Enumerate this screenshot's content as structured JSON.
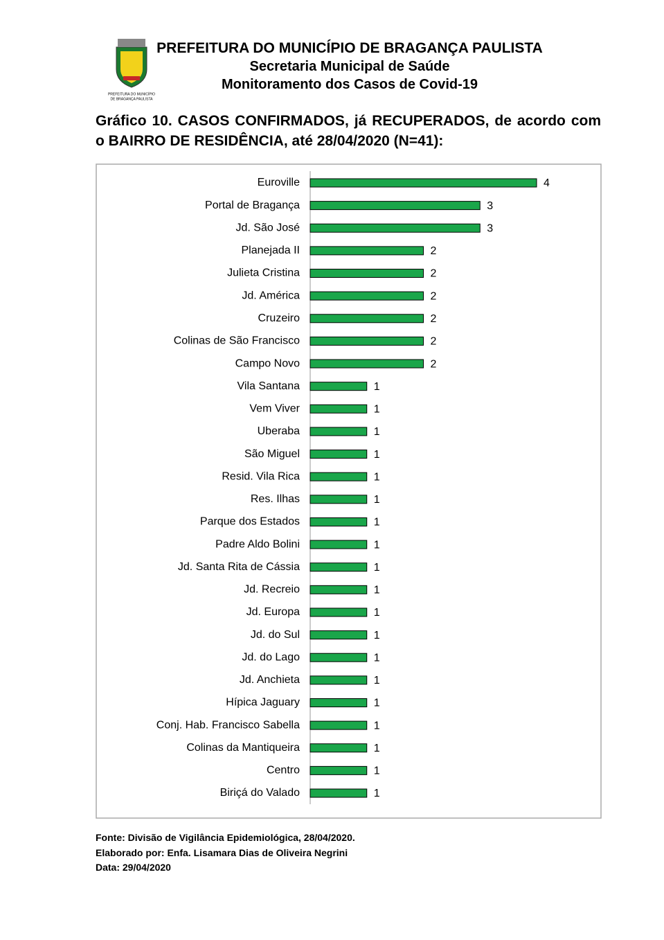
{
  "header": {
    "lines": [
      "PREFEITURA DO MUNICÍPIO DE BRAGANÇA PAULISTA",
      "Secretaria Municipal de Saúde",
      "Monitoramento dos Casos de Covid-19"
    ],
    "logo_caption": [
      "PREFEITURA DO MUNICÍPIO",
      "DE BRAGANÇA PAULISTA"
    ]
  },
  "chart_data": {
    "type": "barh",
    "title": "Gráfico 10. CASOS CONFIRMADOS, já RECUPERADOS, de acordo com o BAIRRO DE RESIDÊNCIA, até 28/04/2020 (N=41):",
    "categories": [
      "Euroville",
      "Portal de Bragança",
      "Jd. São José",
      "Planejada II",
      "Julieta Cristina",
      "Jd. América",
      "Cruzeiro",
      "Colinas de São Francisco",
      "Campo Novo",
      "Vila Santana",
      "Vem Viver",
      "Uberaba",
      "São Miguel",
      "Resid. Vila Rica",
      "Res. Ilhas",
      "Parque dos Estados",
      "Padre Aldo Bolini",
      "Jd. Santa Rita de Cássia",
      "Jd. Recreio",
      "Jd. Europa",
      "Jd. do Sul",
      "Jd. do Lago",
      "Jd. Anchieta",
      "Hípica Jaguary",
      "Conj. Hab. Francisco Sabella",
      "Colinas da Mantiqueira",
      "Centro",
      "Biriçá do Valado"
    ],
    "values": [
      4,
      3,
      3,
      2,
      2,
      2,
      2,
      2,
      2,
      1,
      1,
      1,
      1,
      1,
      1,
      1,
      1,
      1,
      1,
      1,
      1,
      1,
      1,
      1,
      1,
      1,
      1,
      1
    ],
    "color": "#1aa64a"
  },
  "footer": [
    "Fonte: Divisão de Vigilância Epidemiológica, 28/04/2020.",
    "Elaborado por: Enfa. Lisamara Dias de Oliveira Negrini",
    "Data: 29/04/2020"
  ]
}
